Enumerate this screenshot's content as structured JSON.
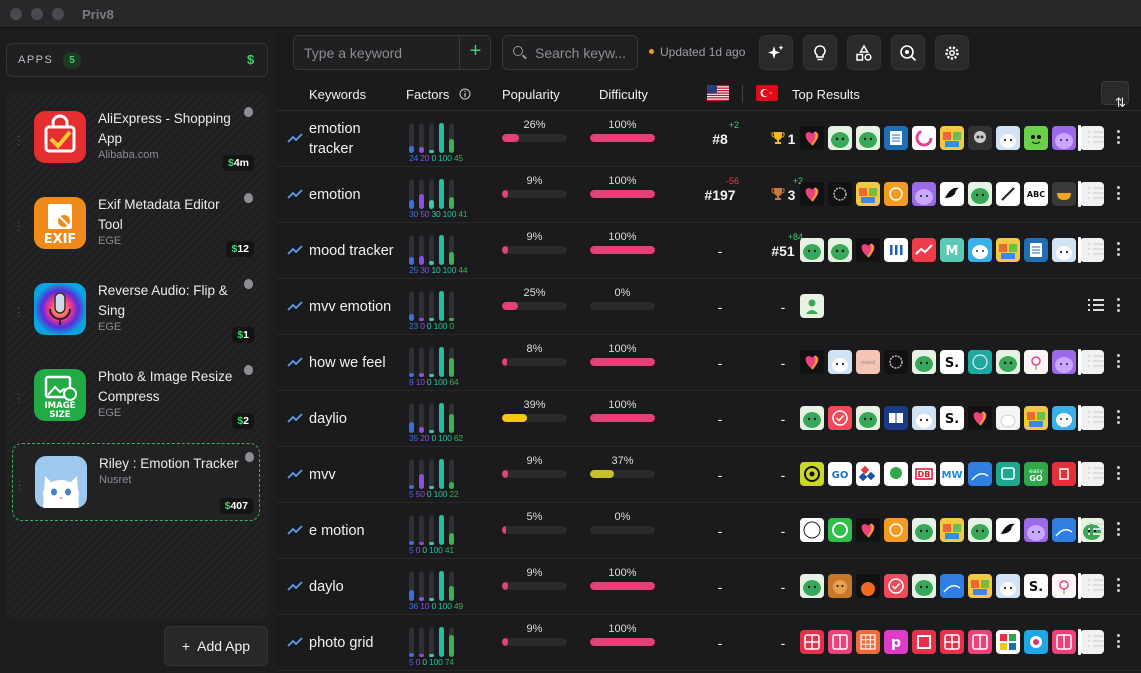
{
  "window": {
    "title": "Priv8"
  },
  "sidebar": {
    "apps_label": "APPS",
    "apps_count": "5",
    "currency_symbol": "$",
    "add_app_label": "Add App",
    "apps": [
      {
        "name": "AliExpress - Shopping App",
        "developer": "Alibaba.com",
        "revenue": "4m",
        "icon": "aliexpress-icon",
        "selected": false
      },
      {
        "name": "Exif Metadata Editor Tool",
        "developer": "EGE",
        "revenue": "12",
        "icon": "exif-icon",
        "selected": false
      },
      {
        "name": "Reverse Audio: Flip & Sing",
        "developer": "EGE",
        "revenue": "1",
        "icon": "reverse-audio-icon",
        "selected": false
      },
      {
        "name": "Photo & Image Resize Compress",
        "developer": "EGE",
        "revenue": "2",
        "icon": "image-size-icon",
        "selected": false
      },
      {
        "name": "Riley : Emotion Tracker",
        "developer": "Nusret",
        "revenue": "407",
        "icon": "riley-cat-icon",
        "selected": true
      }
    ]
  },
  "toolbar": {
    "keyword_placeholder": "Type a keyword",
    "search_placeholder": "Search keyw...",
    "updated": "Updated 1d ago"
  },
  "columns": {
    "keywords": "Keywords",
    "factors": "Factors",
    "popularity": "Popularity",
    "difficulty": "Difficulty",
    "top_results": "Top Results"
  },
  "colors": {
    "factor": [
      "#3b6fe0",
      "#8a4fe0",
      "#3ec7a7",
      "#22c0a0",
      "#3cb054"
    ],
    "popularity_high": "#f5c518",
    "popularity": "#e5407a",
    "difficulty": "#e5407a",
    "difficulty_low": "#c7c22a",
    "positive": "#3fd26a",
    "negative": "#e5404a"
  },
  "rows": [
    {
      "keyword": "emotion tracker",
      "factors": [
        "24",
        "20",
        "0",
        "100",
        "45"
      ],
      "popularity": 26,
      "difficulty": 100,
      "us_rank": "#8",
      "us_delta": "+2",
      "us_delta_type": "up",
      "tr_rank": "1",
      "tr_delta": "",
      "tr_trophy": "gold",
      "icons": [
        "heart-app",
        "green-blob",
        "green-blob",
        "notes-app",
        "c-ring",
        "face-app",
        "skull-app",
        "cat-app",
        "green-face",
        "purple-blob",
        "white"
      ]
    },
    {
      "keyword": "emotion",
      "factors": [
        "30",
        "50",
        "30",
        "100",
        "41"
      ],
      "popularity": 9,
      "difficulty": 100,
      "us_rank": "#197",
      "us_delta": "-56",
      "us_delta_type": "down",
      "tr_rank": "3",
      "tr_delta": "+2",
      "tr_trophy": "bronze",
      "icons": [
        "heart-app",
        "brain-app",
        "face-app",
        "orange-app",
        "purple-blob",
        "bird-app",
        "green-blob",
        "pen-app",
        "text-app",
        "bowl-app",
        "white"
      ]
    },
    {
      "keyword": "mood tracker",
      "factors": [
        "25",
        "30",
        "10",
        "100",
        "44"
      ],
      "popularity": 9,
      "difficulty": 100,
      "us_rank": "-",
      "us_delta": "",
      "us_delta_type": "",
      "tr_rank": "#51",
      "tr_delta": "+84",
      "tr_trophy": "",
      "icons": [
        "green-blob",
        "green-blob",
        "heart-app",
        "bars-app",
        "trend-app",
        "m-app",
        "dog-app",
        "face-app",
        "notes-app",
        "cat-app",
        "white"
      ]
    },
    {
      "keyword": "mvv emotion",
      "factors": [
        "23",
        "0",
        "0",
        "100",
        "0"
      ],
      "popularity": 25,
      "difficulty": 0,
      "us_rank": "-",
      "us_delta": "",
      "us_delta_type": "",
      "tr_rank": "-",
      "tr_delta": "",
      "tr_trophy": "",
      "icons": [
        "person-app"
      ]
    },
    {
      "keyword": "how we feel",
      "factors": [
        "8",
        "10",
        "0",
        "100",
        "64"
      ],
      "popularity": 8,
      "difficulty": 100,
      "us_rank": "-",
      "us_delta": "",
      "us_delta_type": "",
      "tr_rank": "-",
      "tr_delta": "",
      "tr_trophy": "",
      "icons": [
        "heart-app",
        "cat-app",
        "pink-app",
        "brain-app",
        "green-blob",
        "s-app",
        "teal-app",
        "green-blob",
        "flower-app",
        "purple-blob",
        "white"
      ]
    },
    {
      "keyword": "daylio",
      "factors": [
        "35",
        "20",
        "0",
        "100",
        "62"
      ],
      "popularity": 39,
      "difficulty": 100,
      "us_rank": "-",
      "us_delta": "",
      "us_delta_type": "",
      "tr_rank": "-",
      "tr_delta": "",
      "tr_trophy": "",
      "icons": [
        "green-blob",
        "check-app",
        "green-blob",
        "book-app",
        "cat-app",
        "s-app",
        "heart-app",
        "white-app",
        "face-app",
        "dog-app",
        "white"
      ]
    },
    {
      "keyword": "mvv",
      "factors": [
        "5",
        "50",
        "0",
        "100",
        "22"
      ],
      "popularity": 9,
      "difficulty": 37,
      "us_rank": "-",
      "us_delta": "",
      "us_delta_type": "",
      "tr_rank": "-",
      "tr_delta": "",
      "tr_trophy": "",
      "icons": [
        "o-app",
        "go-app",
        "tiles-app",
        "green-round",
        "db-app",
        "mw-app",
        "blue-app",
        "bus-app",
        "easy-go",
        "red-app",
        "white"
      ]
    },
    {
      "keyword": "e motion",
      "factors": [
        "5",
        "0",
        "0",
        "100",
        "41"
      ],
      "popularity": 5,
      "difficulty": 0,
      "us_rank": "-",
      "us_delta": "",
      "us_delta_type": "",
      "tr_rank": "-",
      "tr_delta": "",
      "tr_trophy": "",
      "icons": [
        "circle-app",
        "whatsapp",
        "heart-app",
        "orange-app",
        "green-blob",
        "face-app",
        "green-blob",
        "bird-app",
        "purple-blob",
        "blue-app",
        "green-blob"
      ]
    },
    {
      "keyword": "daylo",
      "factors": [
        "36",
        "10",
        "0",
        "100",
        "49"
      ],
      "popularity": 9,
      "difficulty": 100,
      "us_rank": "-",
      "us_delta": "",
      "us_delta_type": "",
      "tr_rank": "-",
      "tr_delta": "",
      "tr_trophy": "",
      "icons": [
        "green-blob",
        "bear-app",
        "sun-app",
        "check-app",
        "green-blob",
        "blue-app",
        "face-app",
        "cat-app",
        "s-app",
        "flower-app",
        "white"
      ]
    },
    {
      "keyword": "photo grid",
      "factors": [
        "5",
        "0",
        "0",
        "100",
        "74"
      ],
      "popularity": 9,
      "difficulty": 100,
      "us_rank": "-",
      "us_delta": "",
      "us_delta_type": "",
      "tr_rank": "-",
      "tr_delta": "",
      "tr_trophy": "",
      "icons": [
        "grid-red",
        "grid-pink",
        "grid-orange",
        "p-app",
        "frame-app",
        "grid-red",
        "grid-pink",
        "collage-app",
        "camera-app",
        "grid-pink",
        "white"
      ]
    }
  ]
}
